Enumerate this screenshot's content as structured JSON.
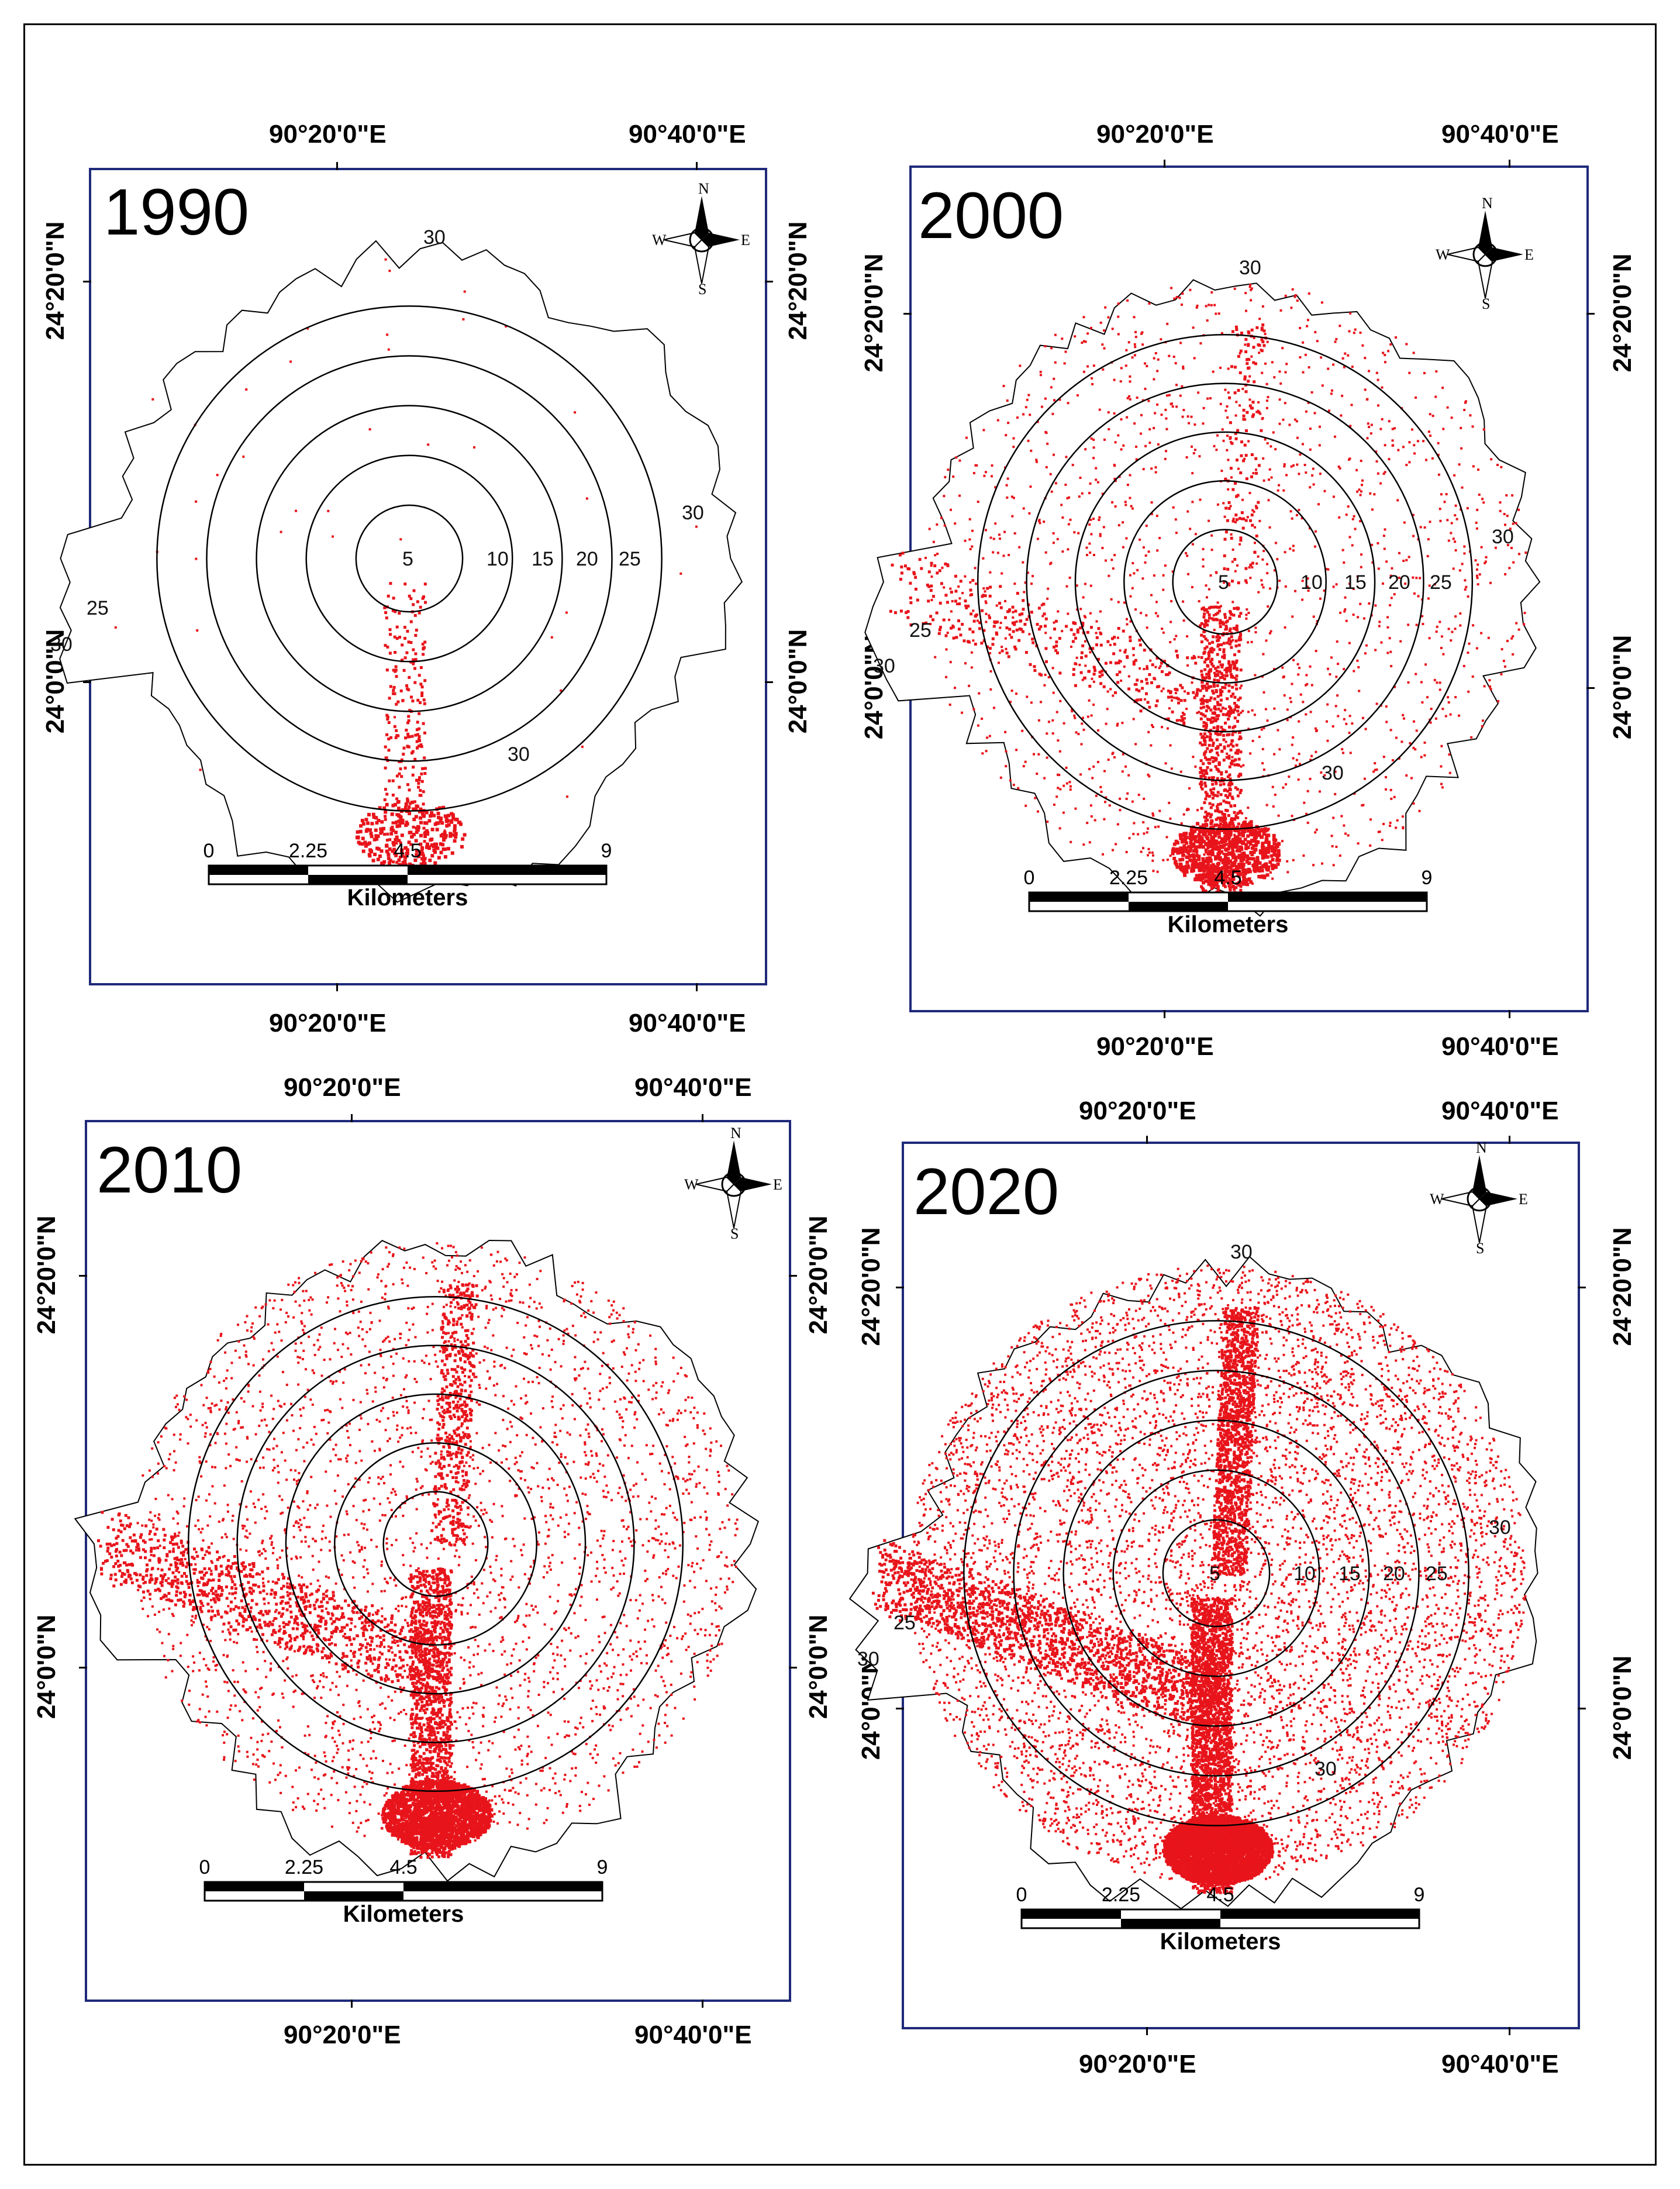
{
  "panels": [
    {
      "year": "1990",
      "lon_labels": [
        "90°20'0\"E",
        "90°40'0\"E"
      ],
      "lat_labels": [
        "24°20'0\"N",
        "24°0'0\"N"
      ],
      "ring_labels": [
        "5",
        "10",
        "15",
        "20",
        "25",
        "30",
        "30",
        "25",
        "30",
        "30"
      ],
      "urban_level": "low"
    },
    {
      "year": "2000",
      "lon_labels": [
        "90°20'0\"E",
        "90°40'0\"E"
      ],
      "lat_labels": [
        "24°20'0\"N",
        "24°0'0\"N"
      ],
      "ring_labels": [
        "5",
        "10",
        "15",
        "20",
        "25",
        "30",
        "30",
        "25",
        "30",
        "30"
      ],
      "urban_level": "moderate"
    },
    {
      "year": "2010",
      "lon_labels": [
        "90°20'0\"E",
        "90°40'0\"E"
      ],
      "lat_labels": [
        "24°20'0\"N",
        "24°0'0\"N"
      ],
      "ring_labels": [],
      "urban_level": "high"
    },
    {
      "year": "2020",
      "lon_labels": [
        "90°20'0\"E",
        "90°40'0\"E"
      ],
      "lat_labels": [
        "24°20'0\"N",
        "24°0'0\"N"
      ],
      "ring_labels": [
        "5",
        "10",
        "15",
        "20",
        "25",
        "30",
        "30",
        "25",
        "30",
        "30"
      ],
      "urban_level": "very-high"
    }
  ],
  "north_arrow": {
    "n": "N",
    "s": "S",
    "e": "E",
    "w": "W"
  },
  "scale_bar": {
    "ticks": [
      "0",
      "2.25",
      "4.5",
      "9"
    ],
    "unit": "Kilometers"
  },
  "colors": {
    "frame": "#1f2a7a",
    "urban": "#e8141b",
    "boundary": "#000000"
  }
}
